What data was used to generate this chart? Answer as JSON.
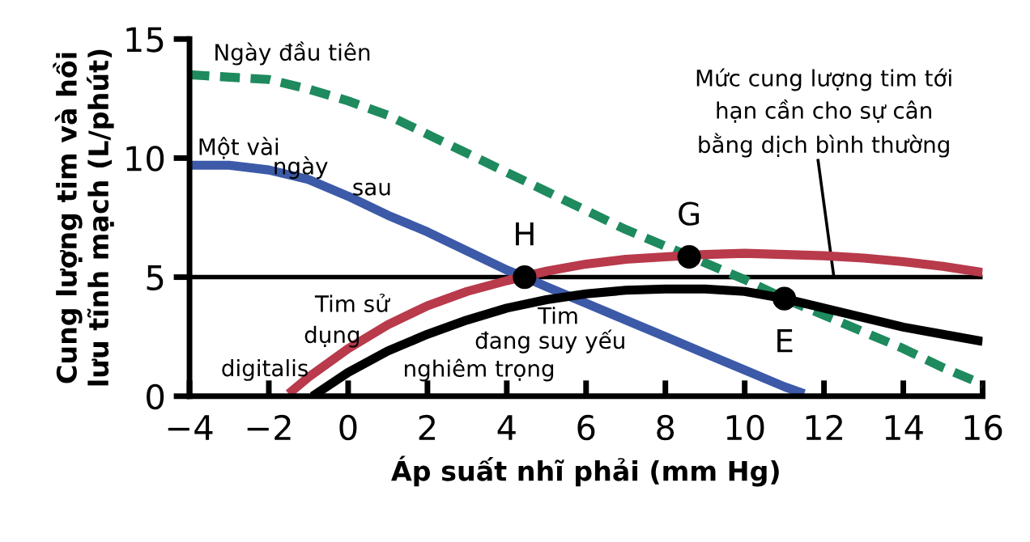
{
  "chart_data": {
    "type": "line",
    "xlabel": "Áp suất nhĩ phải (mm Hg)",
    "ylabel": "Cung lượng tim và hồi\nlưu tĩnh mạch (L/phút)",
    "xlim": [
      -4,
      16
    ],
    "ylim": [
      0,
      15
    ],
    "xticks": [
      {
        "value": -4,
        "label": "−4"
      },
      {
        "value": -2,
        "label": "−2"
      },
      0,
      2,
      4,
      6,
      8,
      10,
      12,
      14,
      16
    ],
    "yticks": [
      0,
      5,
      10,
      15
    ],
    "grid": false,
    "legend": false,
    "series": [
      {
        "name": "Ngày đầu tiên",
        "color": "#1e8a5e",
        "line_style": "dashed",
        "x": [
          -4,
          -3,
          -2,
          -1,
          0,
          1,
          2,
          3,
          4,
          5,
          6,
          7,
          8,
          9,
          10,
          11,
          12,
          13,
          14,
          15,
          16
        ],
        "values": [
          13.5,
          13.4,
          13.3,
          12.9,
          12.4,
          11.8,
          11.0,
          10.2,
          9.4,
          8.6,
          7.8,
          7.0,
          6.3,
          5.6,
          4.9,
          4.1,
          3.4,
          2.7,
          2.0,
          1.2,
          0.5
        ]
      },
      {
        "name": "Một vài ngày sau",
        "color": "#3c5aa8",
        "x": [
          -4,
          -3,
          -2,
          -1,
          0,
          1,
          2,
          3,
          4,
          4.45,
          5,
          6,
          7,
          8,
          9,
          10,
          11,
          11.5
        ],
        "values": [
          9.7,
          9.7,
          9.5,
          9.1,
          8.4,
          7.6,
          6.9,
          6.1,
          5.3,
          5.0,
          4.6,
          3.9,
          3.2,
          2.5,
          1.8,
          1.1,
          0.4,
          0.1
        ]
      },
      {
        "name": "Tim sử dụng digitalis",
        "color": "#b83a4b",
        "x": [
          -1.5,
          -1,
          0,
          1,
          2,
          3,
          4,
          5,
          6,
          7,
          8,
          9,
          10,
          11,
          12,
          13,
          14,
          15,
          16
        ],
        "values": [
          0.1,
          0.8,
          2.0,
          3.0,
          3.8,
          4.4,
          4.85,
          5.25,
          5.55,
          5.75,
          5.85,
          5.95,
          6.0,
          5.95,
          5.9,
          5.8,
          5.65,
          5.45,
          5.2
        ]
      },
      {
        "name": "Tim đang suy yếu nghiêm trọng",
        "color": "#000000",
        "x": [
          -0.9,
          0,
          1,
          2,
          3,
          4,
          5,
          6,
          7,
          8,
          9,
          10,
          11,
          12,
          13,
          14,
          15,
          16
        ],
        "values": [
          0,
          1.0,
          1.9,
          2.6,
          3.2,
          3.7,
          4.05,
          4.3,
          4.45,
          4.5,
          4.5,
          4.4,
          4.1,
          3.7,
          3.3,
          2.9,
          2.6,
          2.3
        ]
      },
      {
        "type": "scatter",
        "color": "#000000",
        "marker": "circle",
        "x": [
          4.45,
          8.6,
          11
        ],
        "values": [
          5,
          5.85,
          4.1
        ]
      }
    ],
    "ref_lines": [
      {
        "axis": "y",
        "value": 5,
        "color": "#000000",
        "label": "Mức cung lượng tim tới\nhạn cần cho sự cân\nbằng dịch bình thường"
      }
    ],
    "annotations": [
      {
        "text": "H",
        "x": 4.45,
        "y": 5
      },
      {
        "text": "G",
        "x": 8.6,
        "y": 5.85
      },
      {
        "text": "E",
        "x": 11,
        "y": 4.1
      }
    ]
  }
}
